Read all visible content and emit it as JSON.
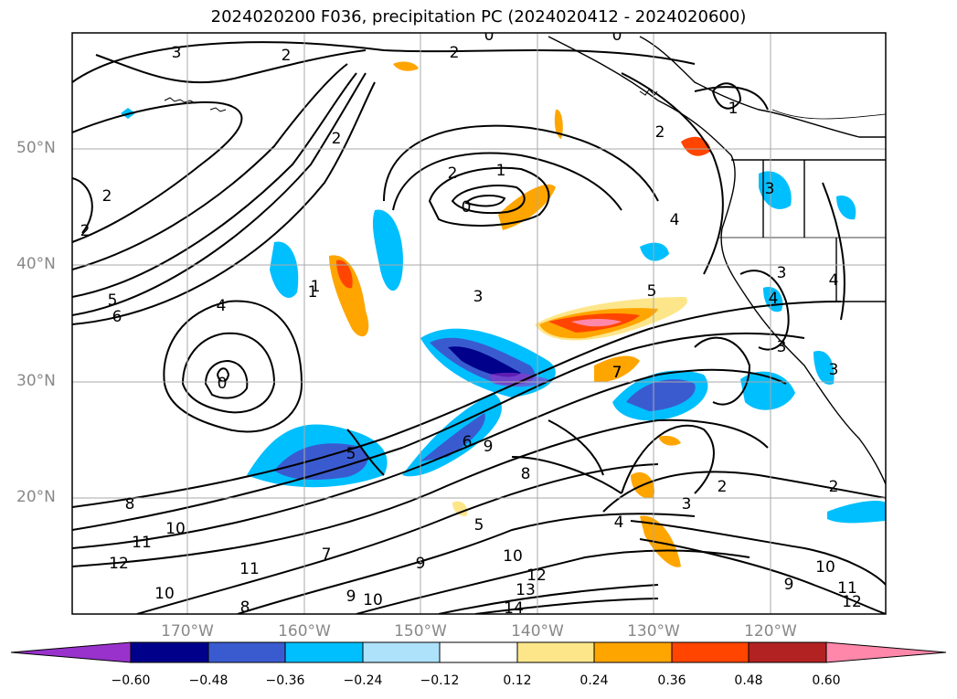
{
  "title": "2024020200 F036, precipitation PC (2024020412 - 2024020600)",
  "lat_labels": [
    "50°N",
    "40°N",
    "30°N",
    "20°N"
  ],
  "lon_labels": [
    "170°W",
    "160°W",
    "150°W",
    "140°W",
    "130°W",
    "120°W"
  ],
  "colorbar": {
    "ticks": [
      "−0.60",
      "−0.48",
      "−0.36",
      "−0.24",
      "−0.12",
      "0.12",
      "0.24",
      "0.36",
      "0.48",
      "0.60"
    ],
    "colors": [
      "#9932cc",
      "#00008b",
      "#3a5bd0",
      "#00bfff",
      "#aee2fb",
      "#ffffff",
      "#fde68a",
      "#ffa500",
      "#ff4500",
      "#b22222",
      "#ff88aa"
    ]
  },
  "contour_labels": [
    "3",
    "2",
    "2",
    "0",
    "0",
    "2",
    "1",
    "2",
    "2",
    "1",
    "2",
    "0",
    "4",
    "1",
    "5",
    "6",
    "4",
    "3",
    "5",
    "0",
    "3",
    "4",
    "5",
    "7",
    "6",
    "9",
    "8",
    "8",
    "10",
    "11",
    "12",
    "11",
    "10",
    "8",
    "10",
    "9",
    "7",
    "9",
    "10",
    "12",
    "13",
    "14",
    "2",
    "3",
    "4",
    "2",
    "9",
    "10",
    "11",
    "12",
    "3",
    "3",
    "4",
    "3",
    "7",
    "1",
    "2",
    "5"
  ],
  "palette": {
    "land_border": "#000000",
    "grid": "#aaaaaa"
  }
}
